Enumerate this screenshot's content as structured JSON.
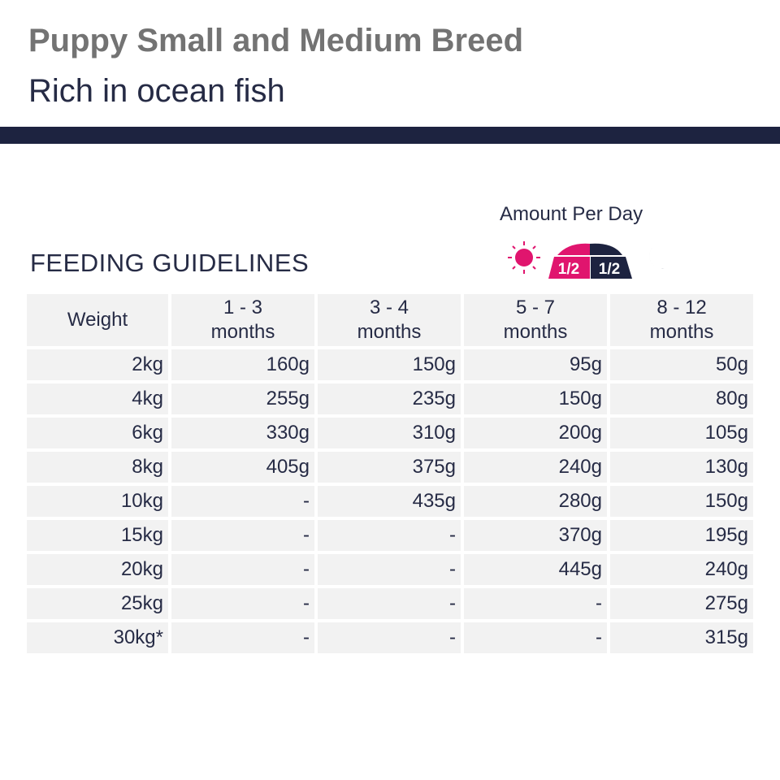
{
  "header": {
    "title": "Puppy Small and Medium Breed",
    "subtitle": "Rich in ocean fish"
  },
  "amount_label": "Amount Per Day",
  "section_title": "FEEDING GUIDELINES",
  "icons": {
    "morning": "sun-icon",
    "evening": "moon-icon",
    "bowl": {
      "left": "1/2",
      "right": "1/2"
    },
    "colors": {
      "pink": "#e0156e",
      "navy": "#1d2340"
    }
  },
  "table": {
    "headers": [
      "Weight",
      "1 - 3\nmonths",
      "3 - 4\nmonths",
      "5 - 7\nmonths",
      "8 - 12\nmonths"
    ],
    "rows": [
      [
        "2kg",
        "160g",
        "150g",
        "95g",
        "50g"
      ],
      [
        "4kg",
        "255g",
        "235g",
        "150g",
        "80g"
      ],
      [
        "6kg",
        "330g",
        "310g",
        "200g",
        "105g"
      ],
      [
        "8kg",
        "405g",
        "375g",
        "240g",
        "130g"
      ],
      [
        "10kg",
        "-",
        "435g",
        "280g",
        "150g"
      ],
      [
        "15kg",
        "-",
        "-",
        "370g",
        "195g"
      ],
      [
        "20kg",
        "-",
        "-",
        "445g",
        "240g"
      ],
      [
        "25kg",
        "-",
        "-",
        "-",
        "275g"
      ],
      [
        "30kg*",
        "-",
        "-",
        "-",
        "315g"
      ]
    ]
  }
}
